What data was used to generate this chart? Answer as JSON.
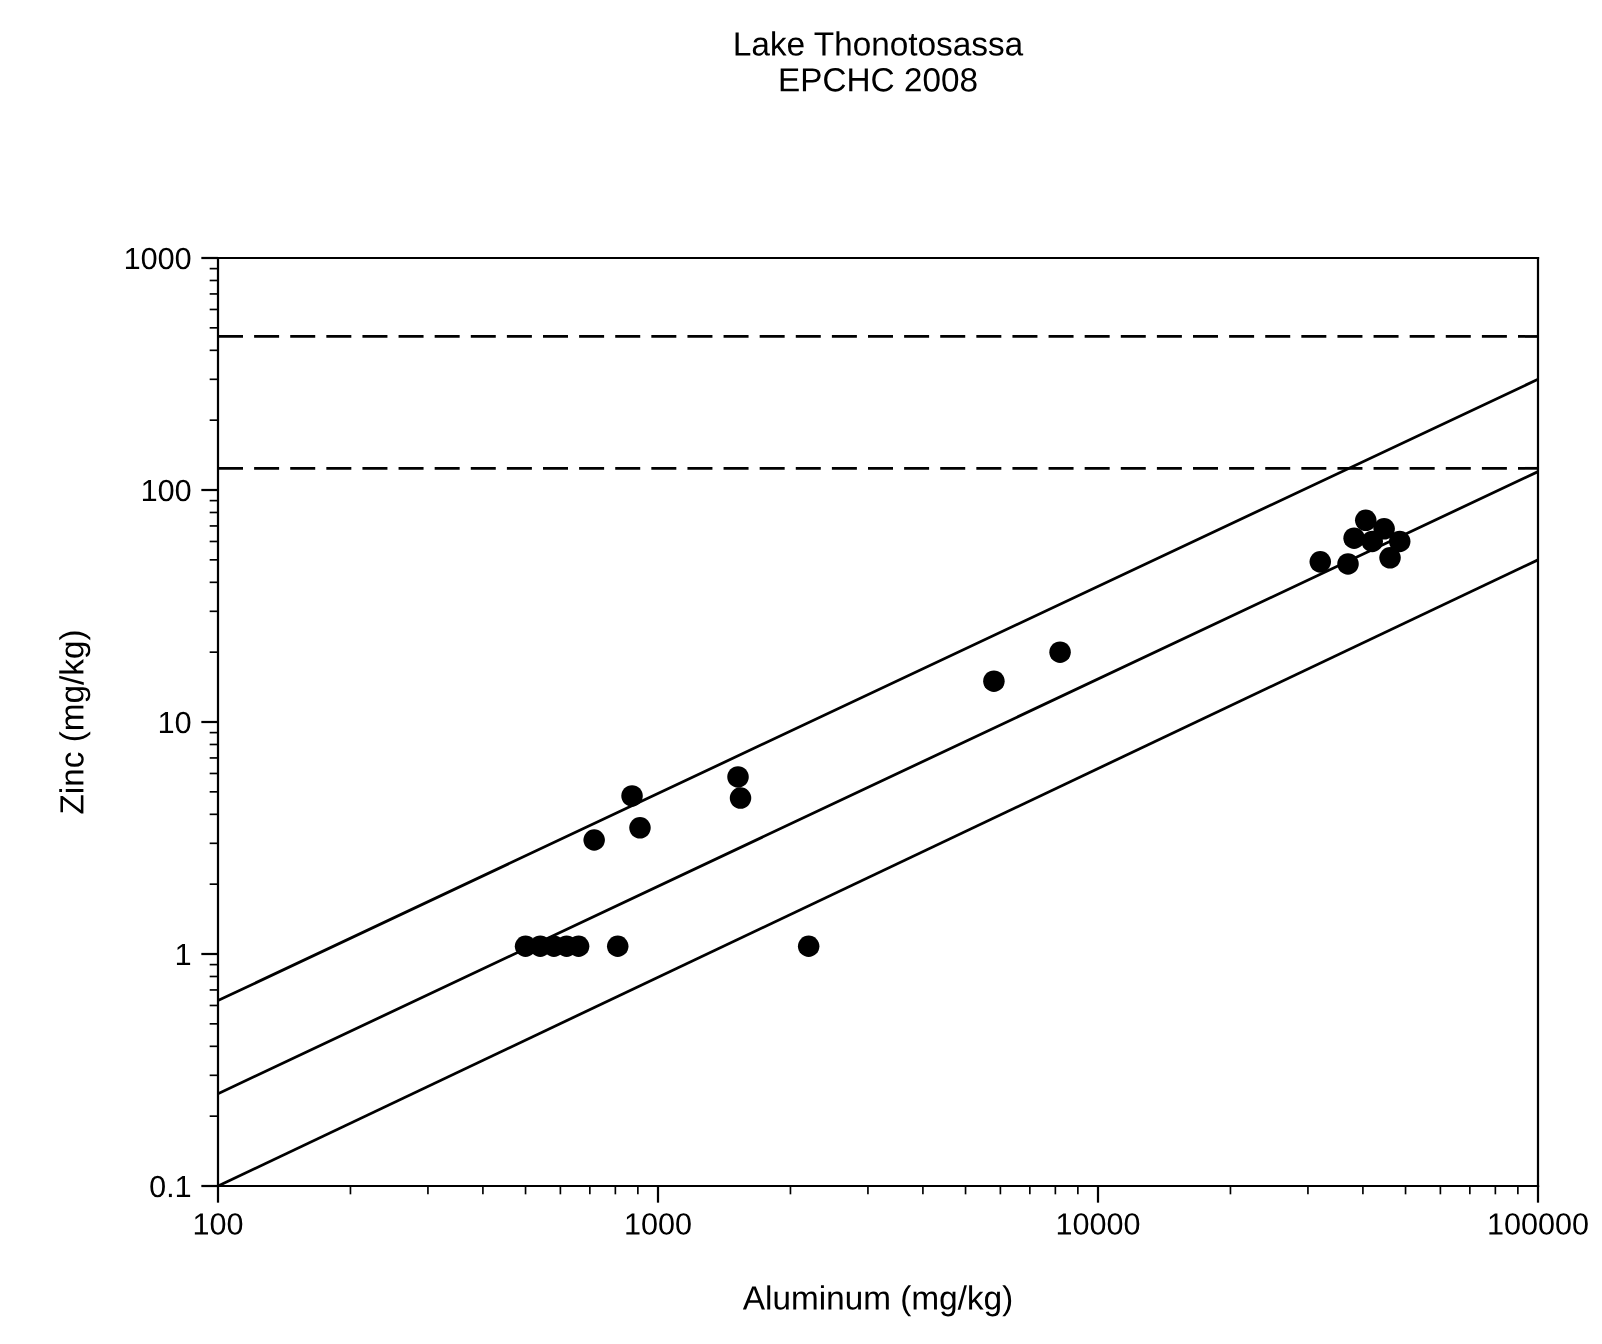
{
  "chart_data": {
    "type": "scatter",
    "title": "Lake Thonotosassa\nEPCHC 2008",
    "xlabel": "Aluminum (mg/kg)",
    "ylabel": "Zinc (mg/kg)",
    "log": "xy",
    "grid": false,
    "marker": "circle",
    "xlim": [
      100,
      100000
    ],
    "xticks": [
      100,
      1000,
      10000,
      100000
    ],
    "ylim": [
      0.1,
      1000
    ],
    "yticks": [
      0.1,
      1,
      10,
      100,
      1000
    ],
    "series": [
      {
        "color": "#000000",
        "x": [
          500,
          540,
          580,
          620,
          660,
          810,
          2200,
          716,
          873,
          910,
          1520,
          1540,
          5800,
          8200,
          32000,
          37000,
          38200,
          40600,
          42000,
          44700,
          46100,
          48500
        ],
        "values": [
          1.08,
          1.08,
          1.08,
          1.08,
          1.08,
          1.08,
          1.08,
          3.1,
          4.8,
          3.5,
          5.8,
          4.7,
          15,
          20,
          49,
          48,
          62,
          74,
          60,
          68,
          51,
          60
        ]
      },
      {
        "type": "line",
        "color": "#000000",
        "line_style": "solid",
        "marker": "none",
        "x": [
          100,
          100000
        ],
        "values": [
          0.63,
          300
        ]
      },
      {
        "type": "line",
        "color": "#000000",
        "line_style": "solid",
        "marker": "none",
        "x": [
          100,
          100000
        ],
        "values": [
          0.25,
          120
        ]
      },
      {
        "type": "line",
        "color": "#000000",
        "line_style": "solid",
        "marker": "none",
        "x": [
          100,
          100000
        ],
        "values": [
          0.1,
          50
        ]
      }
    ],
    "ref_lines": [
      {
        "axis": "y",
        "value": 459,
        "color": "#000000",
        "line_style": "dashed"
      },
      {
        "axis": "y",
        "value": 124,
        "color": "#000000",
        "line_style": "dashed"
      }
    ]
  }
}
